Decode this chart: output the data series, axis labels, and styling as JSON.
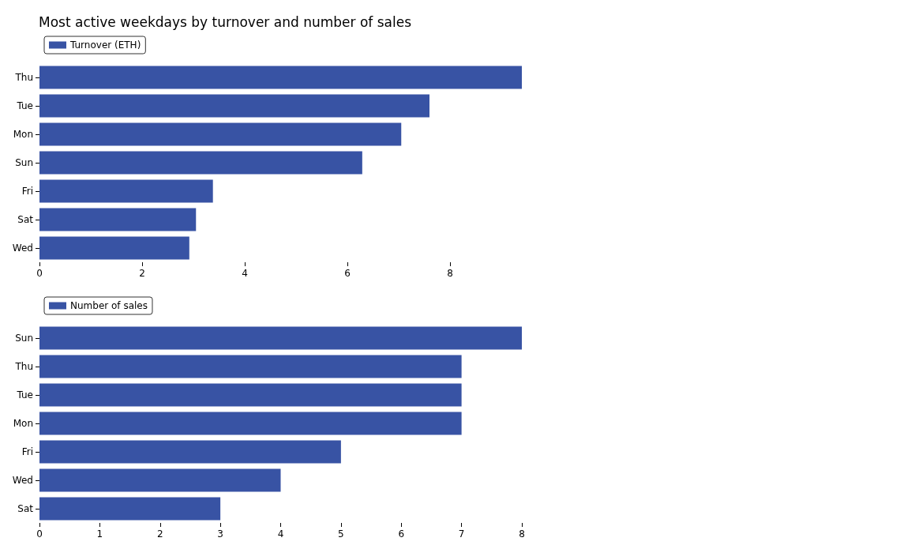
{
  "chart_data": [
    {
      "type": "bar",
      "orientation": "horizontal",
      "title": "Most active weekdays by turnover and number of sales",
      "categories": [
        "Thu",
        "Tue",
        "Mon",
        "Sun",
        "Fri",
        "Sat",
        "Wed"
      ],
      "series": [
        {
          "name": "Turnover (ETH)",
          "color": "#3853a4",
          "values": [
            9.4,
            7.6,
            7.05,
            6.29,
            3.38,
            3.05,
            2.92
          ]
        }
      ],
      "xlim": [
        0,
        9.4
      ],
      "xticks": [
        0,
        2,
        4,
        6,
        8
      ],
      "grid": false,
      "legend": "top left"
    },
    {
      "type": "bar",
      "orientation": "horizontal",
      "categories": [
        "Sun",
        "Thu",
        "Tue",
        "Mon",
        "Fri",
        "Wed",
        "Sat"
      ],
      "series": [
        {
          "name": "Number of sales",
          "color": "#3853a4",
          "values": [
            8,
            7,
            7,
            7,
            5,
            4,
            3
          ]
        }
      ],
      "xlim": [
        0,
        8
      ],
      "xticks": [
        0,
        1,
        2,
        3,
        4,
        5,
        6,
        7,
        8
      ],
      "grid": false,
      "legend": "top left"
    }
  ]
}
